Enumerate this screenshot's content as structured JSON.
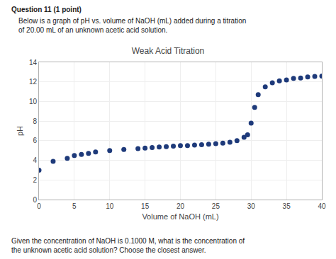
{
  "chart_data": {
    "type": "scatter",
    "title": "Weak Acid Titration",
    "xlabel": "Volume of NaOH (mL)",
    "ylabel": "pH",
    "annotations": [
      "Question 11 (1 point)",
      "Below is a graph of pH vs. volume of NaOH (mL) added during a titration\nof 20.00 mL of an unknown acetic acid solution.",
      "Given the concentration of NaOH is 0.1000 M, what is the concentration of\nthe unknown acetic acid solution? Choose the closest answer."
    ],
    "x": [
      0,
      2,
      4,
      5,
      6,
      7,
      8,
      10,
      12,
      14,
      15,
      16,
      17,
      18,
      19,
      20,
      21,
      22,
      23,
      24,
      25,
      26,
      27,
      28,
      29,
      29.5,
      30,
      30.5,
      31,
      32,
      33,
      34,
      35,
      36,
      37,
      38,
      39,
      40
    ],
    "y": [
      3.0,
      3.9,
      4.2,
      4.5,
      4.6,
      4.7,
      4.85,
      5.0,
      5.1,
      5.2,
      5.25,
      5.3,
      5.35,
      5.4,
      5.45,
      5.5,
      5.5,
      5.55,
      5.6,
      5.65,
      5.7,
      5.75,
      5.85,
      6.0,
      6.35,
      6.6,
      7.8,
      9.4,
      10.7,
      11.5,
      11.9,
      12.1,
      12.2,
      12.35,
      12.4,
      12.5,
      12.55,
      12.6
    ],
    "color": "#1e3a7a",
    "xlim": [
      0,
      40
    ],
    "ylim": [
      0,
      14
    ],
    "xticks": [
      0,
      5,
      10,
      15,
      20,
      25,
      30,
      35,
      40
    ],
    "yticks": [
      0,
      2,
      4,
      6,
      8,
      10,
      12,
      14
    ],
    "grid": true
  }
}
